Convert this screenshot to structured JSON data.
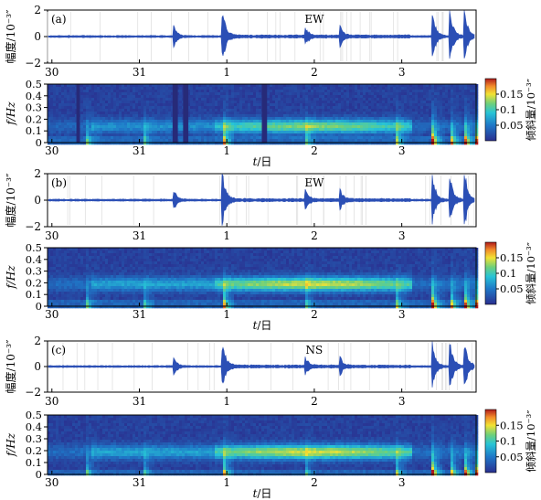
{
  "chart_data": [
    {
      "type": "line",
      "panel_label": "(a)",
      "component": "EW",
      "ylabel": "幅度/10⁻³″",
      "ylim": [
        -2,
        2
      ],
      "yticks": [
        "2",
        "0",
        "−2"
      ],
      "xticks": [
        "30",
        "31",
        "1",
        "2",
        "3"
      ],
      "xlabel": "",
      "events_day": [
        0.4,
        0.95,
        1.9,
        2.3,
        3.35,
        3.55,
        3.72,
        3.84
      ],
      "series_color": "#2b4fb5"
    },
    {
      "type": "heatmap",
      "ylabel": "f/Hz",
      "ylim": [
        0,
        0.5
      ],
      "yticks": [
        "0.5",
        "0.4",
        "0.3",
        "0.2",
        "0.1",
        "0"
      ],
      "xticks": [
        "30",
        "31",
        "1",
        "2",
        "3"
      ],
      "xlabel_italic": "t",
      "xlabel_rest": "/日",
      "colorbar_label": "倾斜量/10⁻³″",
      "colorbar_ticks": [
        "0.15",
        "0.1",
        "0.05"
      ],
      "colorbar_range": [
        0,
        0.2
      ],
      "band_center_hz": 0.15
    },
    {
      "type": "line",
      "panel_label": "(b)",
      "component": "EW",
      "ylabel": "幅度/10⁻³″",
      "ylim": [
        -2,
        2
      ],
      "yticks": [
        "2",
        "0",
        "−2"
      ],
      "xticks": [
        "30",
        "31",
        "1",
        "2",
        "3"
      ],
      "xlabel": "",
      "events_day": [
        0.4,
        0.95,
        1.9,
        2.3,
        3.35,
        3.55,
        3.72,
        3.84
      ],
      "series_color": "#2b4fb5"
    },
    {
      "type": "heatmap",
      "ylabel": "f/Hz",
      "ylim": [
        0,
        0.5
      ],
      "yticks": [
        "0.5",
        "0.4",
        "0.3",
        "0.2",
        "0.1",
        "0"
      ],
      "xticks": [
        "30",
        "31",
        "1",
        "2",
        "3"
      ],
      "xlabel_italic": "t",
      "xlabel_rest": "/日",
      "colorbar_label": "倾斜量/10⁻³″",
      "colorbar_ticks": [
        "0.15",
        "0.1",
        "0.05"
      ],
      "colorbar_range": [
        0,
        0.2
      ],
      "band_center_hz": 0.2
    },
    {
      "type": "line",
      "panel_label": "(c)",
      "component": "NS",
      "ylabel": "幅度/10⁻³″",
      "ylim": [
        -2,
        2
      ],
      "yticks": [
        "2",
        "0",
        "−2"
      ],
      "xticks": [
        "30",
        "31",
        "1",
        "2",
        "3"
      ],
      "xlabel": "",
      "events_day": [
        0.4,
        0.95,
        1.9,
        2.3,
        3.35,
        3.55,
        3.72,
        3.84
      ],
      "series_color": "#2b4fb5"
    },
    {
      "type": "heatmap",
      "ylabel": "f/Hz",
      "ylim": [
        0,
        0.5
      ],
      "yticks": [
        "0.5",
        "0.4",
        "0.3",
        "0.2",
        "0.1",
        "0"
      ],
      "xticks": [
        "30",
        "31",
        "1",
        "2",
        "3"
      ],
      "xlabel_italic": "t",
      "xlabel_rest": "/日",
      "colorbar_label": "倾斜量/10⁻³″",
      "colorbar_ticks": [
        "0.15",
        "0.1",
        "0.05"
      ],
      "colorbar_range": [
        0,
        0.2
      ],
      "band_center_hz": 0.2
    }
  ]
}
